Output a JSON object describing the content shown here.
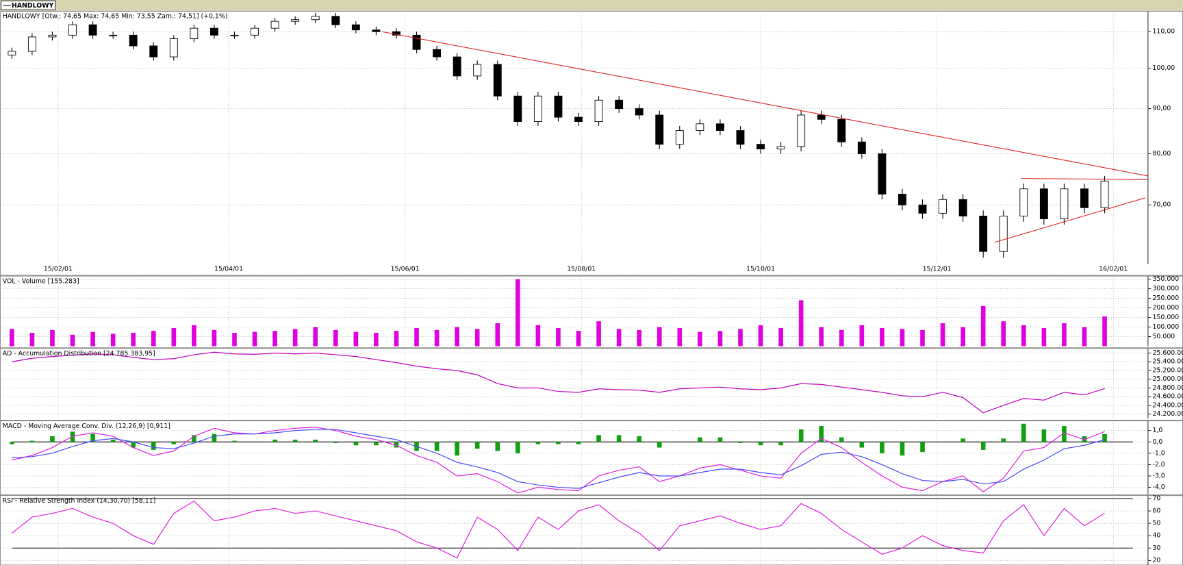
{
  "window_tab": "HANDLOWY",
  "chart_data": [
    {
      "type": "candlestick",
      "title": "HANDLOWY [Otw.: 74,65  Max: 74,65  Min: 73,55  Zam.: 74,51] (+0,1%)",
      "x": [
        4,
        11,
        18,
        25,
        32,
        39,
        46,
        53,
        60,
        67,
        74,
        81,
        88,
        95,
        102,
        109,
        116,
        123,
        130,
        137,
        144,
        151,
        158,
        165,
        172,
        179,
        186,
        193,
        200,
        207,
        214,
        221,
        228,
        235,
        242,
        249,
        256,
        263,
        270,
        277,
        284,
        291,
        298,
        305,
        312,
        319,
        326,
        333,
        340,
        347,
        354,
        361,
        368,
        375,
        382
      ],
      "open": [
        103.5,
        104.5,
        108.5,
        109,
        112,
        109,
        109,
        106,
        103,
        108,
        111,
        109,
        109,
        111,
        113,
        113.5,
        114.5,
        112,
        110.5,
        110,
        109,
        105,
        103,
        98,
        101,
        93,
        87,
        93,
        88,
        87,
        92,
        90,
        88.5,
        82,
        85,
        86.5,
        85,
        82,
        81,
        81.5,
        88.5,
        87.5,
        82.5,
        80,
        72,
        70,
        68.5,
        71,
        68,
        62,
        68,
        73,
        67.5,
        73,
        69.5
      ],
      "high": [
        105.5,
        109.5,
        110,
        113,
        113,
        110,
        110,
        107,
        109,
        112,
        112,
        110,
        112,
        114,
        114.5,
        115.5,
        115.5,
        113,
        111.5,
        111,
        110,
        106,
        104,
        102,
        102,
        94,
        94,
        94,
        89,
        93,
        93,
        91,
        89.5,
        86,
        87.5,
        87.5,
        86,
        83,
        82.5,
        89.5,
        89.5,
        88.5,
        83.5,
        81,
        73,
        71,
        72,
        72,
        69,
        69,
        74,
        74,
        74,
        74,
        75.5
      ],
      "low": [
        102.5,
        103.5,
        107.5,
        108,
        108,
        108,
        105,
        102,
        102,
        107,
        108,
        108,
        108,
        110,
        112,
        112.5,
        111,
        109.5,
        109,
        108,
        104,
        102,
        97,
        97,
        92,
        86,
        86,
        87,
        86,
        86,
        89,
        87.5,
        81,
        81,
        84,
        84,
        81,
        80,
        80,
        80.5,
        86.5,
        81.5,
        79,
        71,
        69,
        67.5,
        67.5,
        67,
        61,
        61,
        67,
        66.5,
        66.5,
        68.5,
        68.5
      ],
      "close": [
        104.5,
        108.5,
        109,
        112,
        109,
        109,
        106,
        103,
        108,
        111,
        109,
        109,
        111,
        113,
        113.5,
        114.5,
        112,
        110.5,
        110,
        109,
        105,
        103,
        98,
        101,
        93,
        87,
        93,
        88,
        87,
        92,
        90,
        88.5,
        82,
        85,
        86.5,
        85,
        82,
        81,
        81.5,
        88.5,
        87.5,
        82.5,
        80,
        72,
        70,
        68.5,
        71,
        68,
        62,
        68,
        73,
        67.5,
        73,
        69.5,
        74.5
      ],
      "up_color": "#ffffff",
      "down_color": "#000000",
      "xlim": [
        0,
        397
      ],
      "xticks": [
        {
          "value": 20,
          "label": "15/02/01"
        },
        {
          "value": 79,
          "label": "15/04/01"
        },
        {
          "value": 140,
          "label": "15/06/01"
        },
        {
          "value": 201,
          "label": "15/08/01"
        },
        {
          "value": 263,
          "label": "15/10/01"
        },
        {
          "value": 324,
          "label": "15/12/01"
        },
        {
          "value": 385,
          "label": "16/02/01"
        }
      ],
      "ylim": [
        60,
        116
      ],
      "log_scale": true,
      "yticks": [
        {
          "value": 70,
          "label": "70,00"
        },
        {
          "value": 80,
          "label": "80,00"
        },
        {
          "value": 90,
          "label": "90,00"
        },
        {
          "value": 100,
          "label": "100,00"
        },
        {
          "value": 110,
          "label": "110,00"
        }
      ],
      "grid": true,
      "trendline_color": "#e02020",
      "trendlines": [
        {
          "x": [
            132,
            397
          ],
          "y": [
            110,
            75.5
          ]
        },
        {
          "x": [
            353,
            397
          ],
          "y": [
            75,
            74.8
          ]
        },
        {
          "x": [
            344,
            396
          ],
          "y": [
            63.5,
            71.3
          ]
        }
      ]
    },
    {
      "type": "bar",
      "title": "VOL - Volume [155.283]",
      "color": "#e000e0",
      "values": [
        90000,
        70000,
        85000,
        60000,
        75000,
        65000,
        70000,
        80000,
        95000,
        110000,
        85000,
        70000,
        75000,
        80000,
        90000,
        100000,
        85000,
        75000,
        70000,
        80000,
        95000,
        85000,
        100000,
        90000,
        120000,
        350000,
        110000,
        95000,
        80000,
        130000,
        90000,
        85000,
        100000,
        95000,
        75000,
        80000,
        90000,
        110000,
        95000,
        240000,
        100000,
        85000,
        110000,
        95000,
        90000,
        85000,
        120000,
        100000,
        210000,
        130000,
        110000,
        95000,
        120000,
        100000,
        155283
      ],
      "ylim": [
        0,
        366000
      ],
      "yticks": [
        {
          "value": 50000,
          "label": "50.000"
        },
        {
          "value": 100000,
          "label": "100.000"
        },
        {
          "value": 150000,
          "label": "150.000"
        },
        {
          "value": 200000,
          "label": "200.000"
        },
        {
          "value": 250000,
          "label": "250.000"
        },
        {
          "value": 300000,
          "label": "300.000"
        },
        {
          "value": 350000,
          "label": "350.000"
        }
      ],
      "grid": true
    },
    {
      "type": "line",
      "title": "AD - Accumulation Distribution [24.785.383,95]",
      "color": "#c000c0",
      "values": [
        25400000,
        25480000,
        25520000,
        25550000,
        25580000,
        25560000,
        25500000,
        25450000,
        25470000,
        25560000,
        25620000,
        25580000,
        25570000,
        25600000,
        25580000,
        25600000,
        25560000,
        25520000,
        25450000,
        25380000,
        25300000,
        25240000,
        25200000,
        25100000,
        24900000,
        24800000,
        24800000,
        24720000,
        24700000,
        24780000,
        24760000,
        24750000,
        24700000,
        24780000,
        24800000,
        24820000,
        24780000,
        24760000,
        24800000,
        24900000,
        24880000,
        24820000,
        24760000,
        24700000,
        24620000,
        24600000,
        24700000,
        24580000,
        24230000,
        24400000,
        24560000,
        24520000,
        24700000,
        24640000,
        24785383.95
      ],
      "ylim": [
        24096000,
        25704000
      ],
      "yticks": [
        {
          "value": 24200000,
          "label": "24.200.000"
        },
        {
          "value": 24400000,
          "label": "24.400.000"
        },
        {
          "value": 24600000,
          "label": "24.600.000"
        },
        {
          "value": 24800000,
          "label": "24.800.000"
        },
        {
          "value": 25000000,
          "label": "25.000.000"
        },
        {
          "value": 25200000,
          "label": "25.200.000"
        },
        {
          "value": 25400000,
          "label": "25.400.000"
        },
        {
          "value": 25600000,
          "label": "25.600.000"
        }
      ],
      "grid": true
    },
    {
      "type": "macd",
      "title": "MACD - Moving Average Conv. Div. (12,26,9) [0,911]",
      "series": [
        {
          "color": "#e020e0",
          "values": [
            -1.6,
            -1.2,
            -0.5,
            0.5,
            0.8,
            0.5,
            -0.5,
            -1.2,
            -0.8,
            0.5,
            1.2,
            0.8,
            0.7,
            1.0,
            1.2,
            1.3,
            1.0,
            0.5,
            0.2,
            -0.3,
            -1.2,
            -1.8,
            -3.0,
            -2.8,
            -3.5,
            -4.5,
            -4.0,
            -4.2,
            -4.3,
            -3.0,
            -2.5,
            -2.2,
            -3.5,
            -3.0,
            -2.3,
            -2.0,
            -2.5,
            -3.0,
            -3.2,
            -1.0,
            0.3,
            -0.5,
            -1.8,
            -3.0,
            -4.0,
            -4.3,
            -3.5,
            -3.0,
            -4.4,
            -3.2,
            -0.8,
            -0.5,
            0.8,
            0.2,
            0.911
          ]
        },
        {
          "color": "#4848ff",
          "values": [
            -1.4,
            -1.3,
            -1.0,
            -0.4,
            0.1,
            0.3,
            0.0,
            -0.5,
            -0.6,
            -0.1,
            0.5,
            0.7,
            0.7,
            0.8,
            1.0,
            1.1,
            1.1,
            0.8,
            0.5,
            0.2,
            -0.4,
            -1.0,
            -1.8,
            -2.2,
            -2.7,
            -3.5,
            -3.8,
            -4.0,
            -4.1,
            -3.6,
            -3.1,
            -2.7,
            -3.0,
            -3.0,
            -2.7,
            -2.4,
            -2.4,
            -2.7,
            -2.9,
            -2.1,
            -1.1,
            -0.9,
            -1.3,
            -2.0,
            -2.8,
            -3.4,
            -3.5,
            -3.3,
            -3.7,
            -3.5,
            -2.4,
            -1.6,
            -0.6,
            -0.3,
            0.2
          ]
        }
      ],
      "histogram": {
        "color": "#10a010",
        "values": [
          -0.2,
          0.1,
          0.5,
          0.9,
          0.7,
          0.2,
          -0.5,
          -0.7,
          -0.2,
          0.6,
          0.7,
          0.1,
          0,
          0.2,
          0.2,
          0.2,
          -0.1,
          -0.3,
          -0.3,
          -0.5,
          -0.8,
          -0.8,
          -1.2,
          -0.6,
          -0.8,
          -1.0,
          -0.2,
          -0.2,
          -0.2,
          0.6,
          0.6,
          0.5,
          -0.5,
          0,
          0.4,
          0.4,
          -0.1,
          -0.3,
          -0.3,
          1.1,
          1.4,
          0.4,
          -0.5,
          -1.0,
          -1.2,
          -0.9,
          0,
          0.3,
          -0.7,
          0.3,
          1.6,
          1.1,
          1.4,
          0.5,
          0.7
        ]
      },
      "ylim": [
        -4.6,
        1.85
      ],
      "yticks": [
        {
          "value": -4,
          "label": "-4,0"
        },
        {
          "value": -3,
          "label": "-3,0"
        },
        {
          "value": -2,
          "label": "-2,0"
        },
        {
          "value": -1,
          "label": "-1,0"
        },
        {
          "value": 0,
          "label": "0,0"
        },
        {
          "value": 1,
          "label": "1,0"
        }
      ],
      "grid": true
    },
    {
      "type": "line",
      "title": "RSI - Relative Strength Index (14,30,70) [58,11]",
      "color": "#e020e0",
      "values": [
        42,
        55,
        58,
        62,
        55,
        50,
        40,
        33,
        58,
        68,
        52,
        55,
        60,
        62,
        58,
        60,
        56,
        52,
        48,
        44,
        35,
        30,
        22,
        55,
        45,
        28,
        55,
        45,
        60,
        65,
        52,
        42,
        28,
        48,
        52,
        56,
        50,
        45,
        48,
        66,
        58,
        45,
        35,
        25,
        30,
        40,
        32,
        28,
        26,
        52,
        65,
        40,
        62,
        48,
        58.11
      ],
      "levels": [
        30,
        70
      ],
      "ylim": [
        16.3,
        72.4
      ],
      "yticks": [
        20,
        30,
        40,
        50,
        60,
        70
      ],
      "grid": true
    }
  ]
}
